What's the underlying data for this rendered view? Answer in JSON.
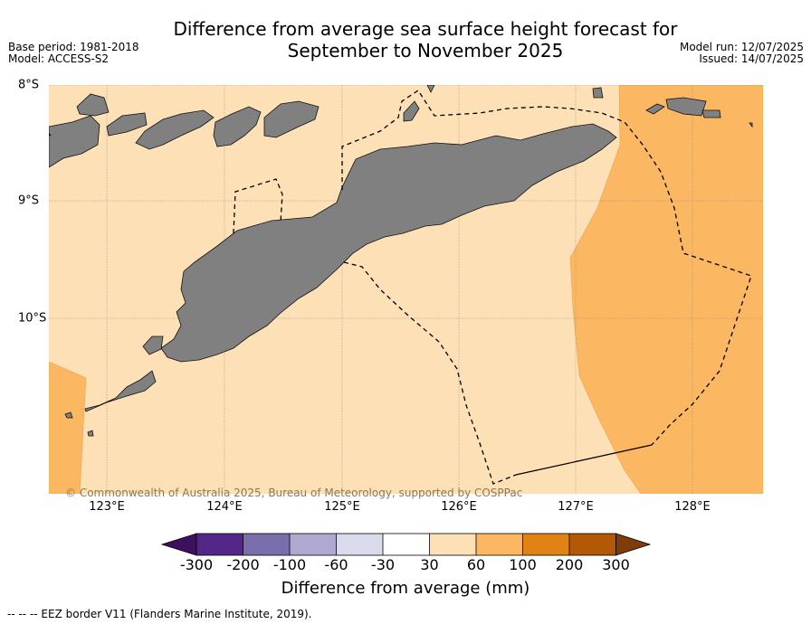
{
  "title_line1": "Difference from average sea surface height forecast for",
  "title_line2": "September to November 2025",
  "meta_left": {
    "base_period": "Base period: 1981-2018",
    "model": "Model: ACCESS-S2"
  },
  "meta_right": {
    "model_run": "Model run: 12/07/2025",
    "issued": "Issued: 14/07/2025"
  },
  "map": {
    "lat_labels": [
      "8°S",
      "9°S",
      "10°S"
    ],
    "lon_labels": [
      "123°E",
      "124°E",
      "125°E",
      "126°E",
      "127°E",
      "128°E"
    ],
    "copyright": "© Commonwealth of Australia 2025, Bureau of Meteorology, supported by COSPPac",
    "colors": {
      "land": "#808080",
      "bin_30_60": "#fde0b6",
      "bin_60_100": "#fbb761"
    }
  },
  "colorbar": {
    "title": "Difference from average (mm)",
    "tick_labels": [
      "-300",
      "-200",
      "-100",
      "-60",
      "-30",
      "30",
      "60",
      "100",
      "200",
      "300"
    ],
    "colors": [
      "#3f1060",
      "#532787",
      "#7a6dab",
      "#ada9d1",
      "#d9daeb",
      "#ffffff",
      "#fde0b6",
      "#fbb761",
      "#e08214",
      "#b35806",
      "#7f3b08"
    ]
  },
  "footnote": "--  --  -- EEZ border V11 (Flanders Marine Institute, 2019)."
}
